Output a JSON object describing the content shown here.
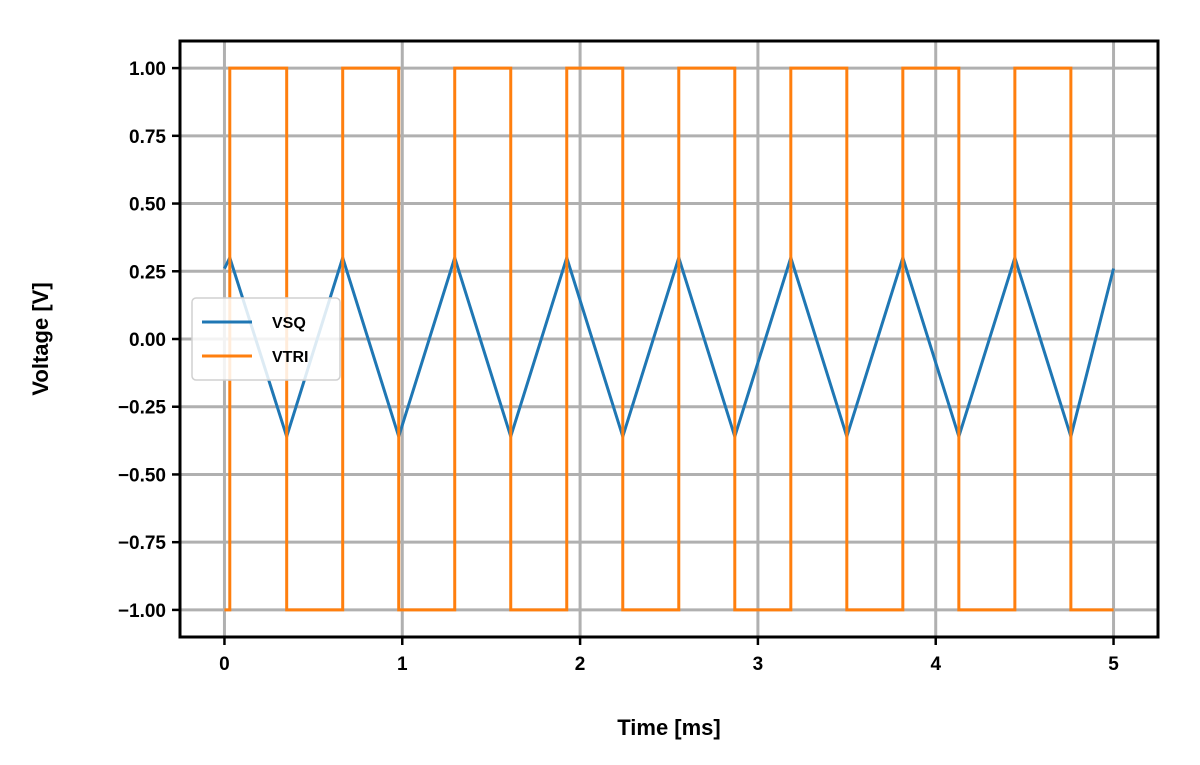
{
  "chart_data": {
    "type": "line",
    "title": "",
    "xlabel": "Time [ms]",
    "ylabel": "Voltage [V]",
    "xlim": [
      -0.25,
      5.25
    ],
    "ylim": [
      -1.1,
      1.1
    ],
    "x_ticks": [
      0,
      1,
      2,
      3,
      4,
      5
    ],
    "x_tick_labels": [
      "0",
      "1",
      "2",
      "3",
      "4",
      "5"
    ],
    "y_ticks": [
      1.0,
      0.75,
      0.5,
      0.25,
      0.0,
      -0.25,
      -0.5,
      -0.75,
      -1.0
    ],
    "y_tick_labels": [
      "1.00",
      "0.75",
      "0.50",
      "0.25",
      "0.00",
      "−0.25",
      "−0.50",
      "−0.75",
      "−1.00"
    ],
    "grid": true,
    "legend_position": "center-left",
    "series": [
      {
        "name": "VSQ",
        "color": "#1f77b4",
        "x": [
          0,
          0.03,
          0.35,
          0.665,
          0.98,
          1.295,
          1.61,
          1.925,
          2.24,
          2.555,
          2.87,
          3.185,
          3.5,
          3.815,
          4.13,
          4.445,
          4.76,
          5.0
        ],
        "y": [
          0.26,
          0.3,
          -0.36,
          0.3,
          -0.36,
          0.3,
          -0.36,
          0.3,
          -0.36,
          0.3,
          -0.36,
          0.3,
          -0.36,
          0.3,
          -0.36,
          0.3,
          -0.36,
          0.26
        ]
      },
      {
        "name": "VTRI",
        "color": "#ff7f0e",
        "x": [
          0,
          0.03,
          0.03,
          0.35,
          0.35,
          0.665,
          0.665,
          0.98,
          0.98,
          1.295,
          1.295,
          1.61,
          1.61,
          1.925,
          1.925,
          2.24,
          2.24,
          2.555,
          2.555,
          2.87,
          2.87,
          3.185,
          3.185,
          3.5,
          3.5,
          3.815,
          3.815,
          4.13,
          4.13,
          4.445,
          4.445,
          4.76,
          4.76,
          5.0
        ],
        "y": [
          -1,
          -1,
          1,
          1,
          -1,
          -1,
          1,
          1,
          -1,
          -1,
          1,
          1,
          -1,
          -1,
          1,
          1,
          -1,
          -1,
          1,
          1,
          -1,
          -1,
          1,
          1,
          -1,
          -1,
          1,
          1,
          -1,
          -1,
          1,
          1,
          -1,
          -1
        ]
      }
    ]
  }
}
